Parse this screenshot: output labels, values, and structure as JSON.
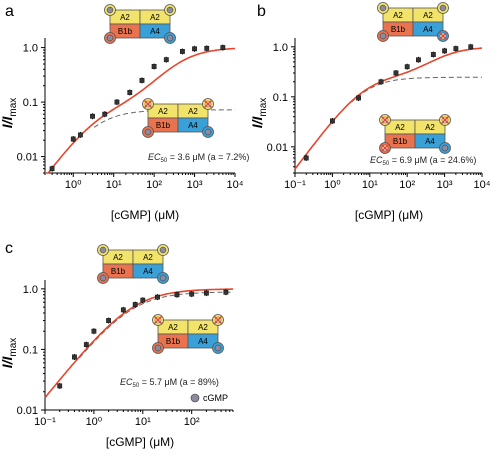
{
  "chart_data": [
    {
      "panel": "a",
      "type": "scatter",
      "x_scale": "log",
      "y_scale": "log",
      "xlabel": "[cGMP] (μM)",
      "ylabel_main": "I/I",
      "ylabel_sub": "max",
      "xlim": [
        0.2,
        10000
      ],
      "ylim": [
        0.005,
        1.5
      ],
      "x_ticks": [
        1,
        10,
        100,
        1000,
        10000
      ],
      "x_tick_labels": [
        "10⁰",
        "10¹",
        "10²",
        "10³",
        "10⁴"
      ],
      "y_ticks": [
        0.01,
        0.1,
        1.0
      ],
      "y_tick_labels": [
        "0.01",
        "0.1",
        "1.0"
      ],
      "series": [
        {
          "kind": "data",
          "x": [
            0.3,
            1,
            1.5,
            3,
            6,
            12,
            25,
            50,
            100,
            200,
            500,
            1000,
            2000,
            5000
          ],
          "y": [
            0.006,
            0.021,
            0.025,
            0.055,
            0.06,
            0.1,
            0.15,
            0.25,
            0.45,
            0.6,
            0.85,
            0.95,
            0.97,
            1.0
          ]
        }
      ],
      "fit": {
        "ec50": 3.6,
        "a": 0.072,
        "n": 1.0,
        "high_comp": true
      },
      "ec50_label": {
        "main": "EC",
        "sub": "50",
        "rest": " = 3.6 μM (a = 7.2%)"
      },
      "legend": ""
    },
    {
      "panel": "b",
      "type": "scatter",
      "x_scale": "log",
      "y_scale": "log",
      "xlabel": "[cGMP] (μM)",
      "ylabel_main": "I/I",
      "ylabel_sub": "max",
      "xlim": [
        0.1,
        10000
      ],
      "ylim": [
        0.003,
        1.5
      ],
      "x_ticks": [
        0.1,
        1,
        10,
        100,
        1000,
        10000
      ],
      "x_tick_labels": [
        "10⁻¹",
        "10⁰",
        "10¹",
        "10²",
        "10³",
        "10⁴"
      ],
      "y_ticks": [
        0.01,
        0.1,
        1.0
      ],
      "y_tick_labels": [
        "0.01",
        "0.1",
        "1.0"
      ],
      "series": [
        {
          "kind": "data",
          "x": [
            0.2,
            1,
            5,
            20,
            50,
            100,
            200,
            500,
            1000,
            2000,
            5000
          ],
          "y": [
            0.006,
            0.033,
            0.095,
            0.2,
            0.3,
            0.4,
            0.55,
            0.7,
            0.83,
            0.92,
            1.0
          ]
        }
      ],
      "fit": {
        "ec50": 6.9,
        "a": 0.246,
        "n": 1.0,
        "high_comp": true
      },
      "ec50_label": {
        "main": "EC",
        "sub": "50",
        "rest": " = 6.9 μM (a = 24.6%)"
      },
      "legend": ""
    },
    {
      "panel": "c",
      "type": "scatter",
      "x_scale": "log",
      "y_scale": "log",
      "xlabel": "[cGMP] (μM)",
      "ylabel_main": "I/I",
      "ylabel_sub": "max",
      "xlim": [
        0.1,
        700
      ],
      "ylim": [
        0.01,
        1.4
      ],
      "x_ticks": [
        0.1,
        1,
        10,
        100
      ],
      "x_tick_labels": [
        "10⁻¹",
        "10⁰",
        "10¹",
        "10²"
      ],
      "y_ticks": [
        0.01,
        0.1,
        1.0
      ],
      "y_tick_labels": [
        "0.01",
        "0.1",
        "1.0"
      ],
      "series": [
        {
          "kind": "data",
          "x": [
            0.2,
            0.4,
            0.7,
            1,
            2,
            4,
            7,
            10,
            20,
            50,
            100,
            200,
            500
          ],
          "y": [
            0.025,
            0.075,
            0.12,
            0.2,
            0.3,
            0.45,
            0.55,
            0.65,
            0.73,
            0.8,
            0.82,
            0.85,
            0.88
          ]
        }
      ],
      "fit": {
        "ec50": 5.7,
        "a": 0.89,
        "n": 1.0,
        "high_comp": true
      },
      "ec50_label": {
        "main": "EC",
        "sub": "50",
        "rest": " = 5.7 μM (a = 89%)"
      },
      "legend": "cGMP"
    }
  ],
  "channel_labels": {
    "top_left": "A2",
    "top_right": "A2",
    "bottom_left": "B1b",
    "bottom_right": "A4"
  },
  "colors": {
    "a2_subunit": "#f2e36b",
    "b1b_subunit": "#e9734f",
    "a4_subunit": "#3aa0d8",
    "binding_site": "#8a8aa0",
    "knockout_mark": "#e8452c",
    "fit_line": "#e8452c",
    "fit_dashed": "#666666",
    "data_marker": "#333333"
  }
}
